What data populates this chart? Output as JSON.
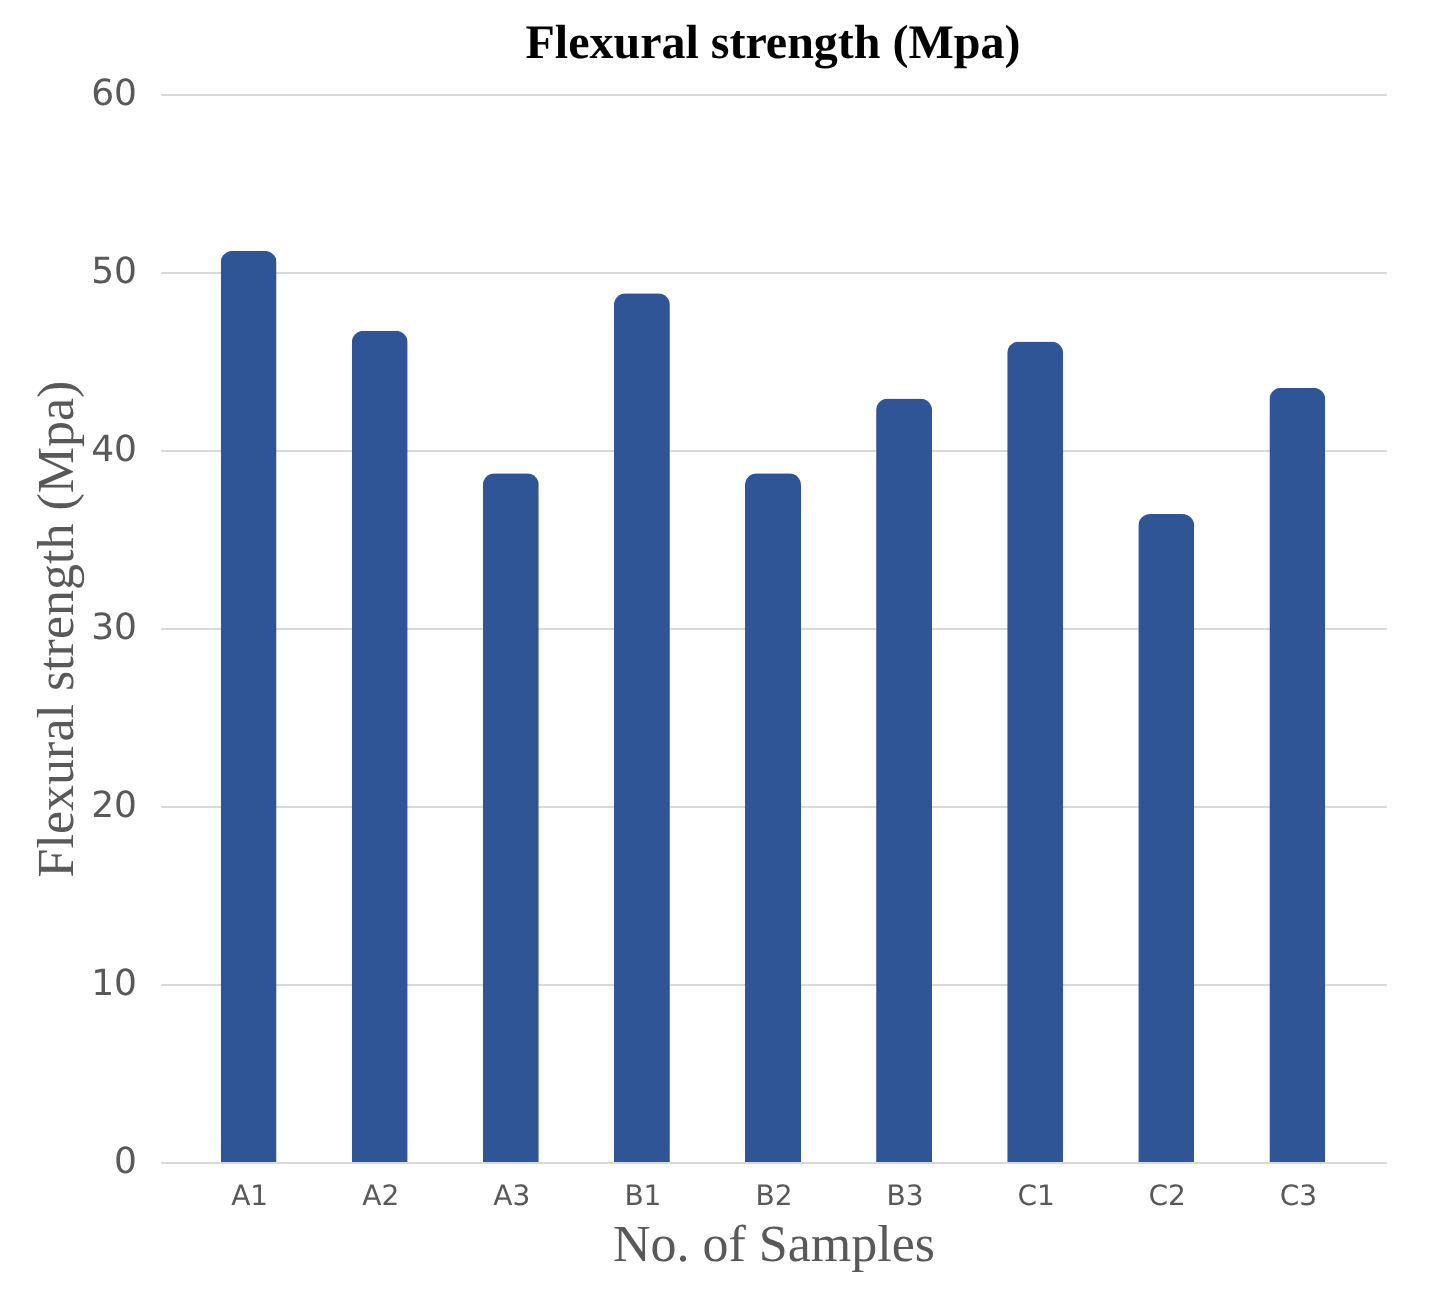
{
  "chart_data": {
    "type": "bar",
    "title": "Flexural strength (Mpa)",
    "xlabel": "No. of Samples",
    "ylabel": "Flexural strength (Mpa)",
    "categories": [
      "A1",
      "A2",
      "A3",
      "B1",
      "B2",
      "B3",
      "C1",
      "C2",
      "C3"
    ],
    "series": [
      {
        "color": "#2f5597",
        "values": [
          51.2,
          46.7,
          38.7,
          48.8,
          38.7,
          42.9,
          46.1,
          36.4,
          43.5
        ]
      }
    ],
    "ylim": [
      0,
      60
    ],
    "yticks": [
      0,
      10,
      20,
      30,
      40,
      50,
      60
    ],
    "grid": "y",
    "legend": false
  }
}
